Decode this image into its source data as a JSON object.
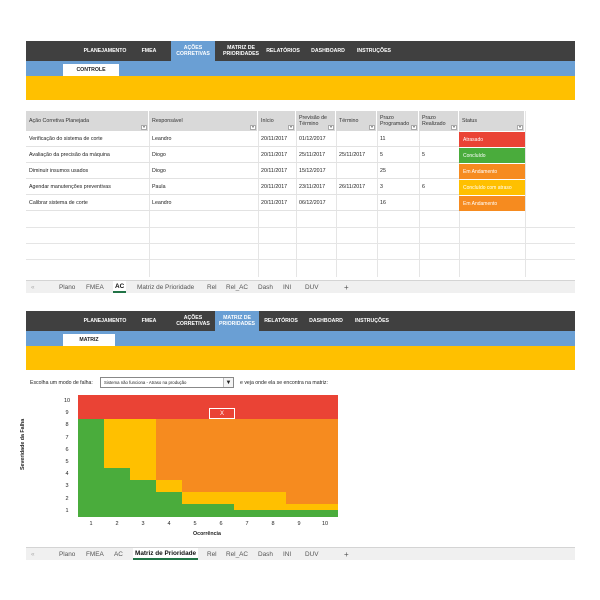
{
  "nav": [
    "PLANEJAMENTO",
    "FMEA",
    "AÇÕES CORRETIVAS",
    "MATRIZ DE PRIORIDADES",
    "RELATÓRIOS",
    "DASHBOARD",
    "INSTRUÇÕES"
  ],
  "top": {
    "active_nav": "AÇÕES CORRETIVAS",
    "subtab": "CONTROLE"
  },
  "table": {
    "headers": [
      "Ação Corretiva Planejada",
      "Responsável",
      "Início",
      "Previsão de Término",
      "Término",
      "Prazo Programado",
      "Prazo Realizado",
      "Status"
    ],
    "rows": [
      [
        "Verificação do sistema de corte",
        "Leandro",
        "20/11/2017",
        "01/12/2017",
        "",
        "11",
        "",
        "Atrasado"
      ],
      [
        "Avaliação da precisão da máquina",
        "Diogo",
        "20/11/2017",
        "25/11/2017",
        "25/11/2017",
        "5",
        "5",
        "Concluído"
      ],
      [
        "Diminuir insumos usados",
        "Diogo",
        "20/11/2017",
        "15/12/2017",
        "",
        "25",
        "",
        "Em Andamento"
      ],
      [
        "Agendar manutenções preventivas",
        "Paula",
        "20/11/2017",
        "23/11/2017",
        "26/11/2017",
        "3",
        "6",
        "Concluído com atraso"
      ],
      [
        "Calibrar sistema de corte",
        "Leandro",
        "20/11/2017",
        "06/12/2017",
        "",
        "16",
        "",
        "Em Andamento"
      ]
    ],
    "status_colors": {
      "Atrasado": "#ea4335",
      "Concluído": "#4aac3c",
      "Em Andamento": "#f68b1f",
      "Concluído com atraso": "#ffc000"
    }
  },
  "sheet_tabs": [
    "Plano",
    "FMEA",
    "AC",
    "Matriz de Prioridade",
    "Rel",
    "Rel_AC",
    "Dash",
    "INI",
    "DUV"
  ],
  "sheet_tabs_add": "+",
  "sheet_tabs_scroll": "«",
  "sheets": {
    "top_active": "AC",
    "bottom_active": "Matriz de Prioridade"
  },
  "bottom": {
    "active_nav": "MATRIZ DE PRIORIDADES",
    "subtab": "MATRIZ"
  },
  "matrix": {
    "prompt": "Escolha um modo de falha:",
    "selected_failure_mode": "Sistema não funciona - Atraso na produção",
    "hint": "e veja onde ela se encontra na matriz:",
    "y_axis_title": "Severidade da Falha",
    "x_axis_title": "Ocorrência",
    "severity_ticks": [
      "1",
      "2",
      "3",
      "4",
      "5",
      "6",
      "7",
      "8",
      "9",
      "10"
    ],
    "occurrence_ticks": [
      "1",
      "2",
      "3",
      "4",
      "5",
      "6",
      "7",
      "8",
      "9",
      "10"
    ],
    "marker_label": "X",
    "marker_severity": 9,
    "marker_occurrence": 6,
    "colors": {
      "green": "#4aac3c",
      "yellow": "#ffc000",
      "orange": "#f68b1f",
      "red": "#ea4335"
    }
  },
  "dropdown_arrow": "▾",
  "select_arrow": "▼"
}
